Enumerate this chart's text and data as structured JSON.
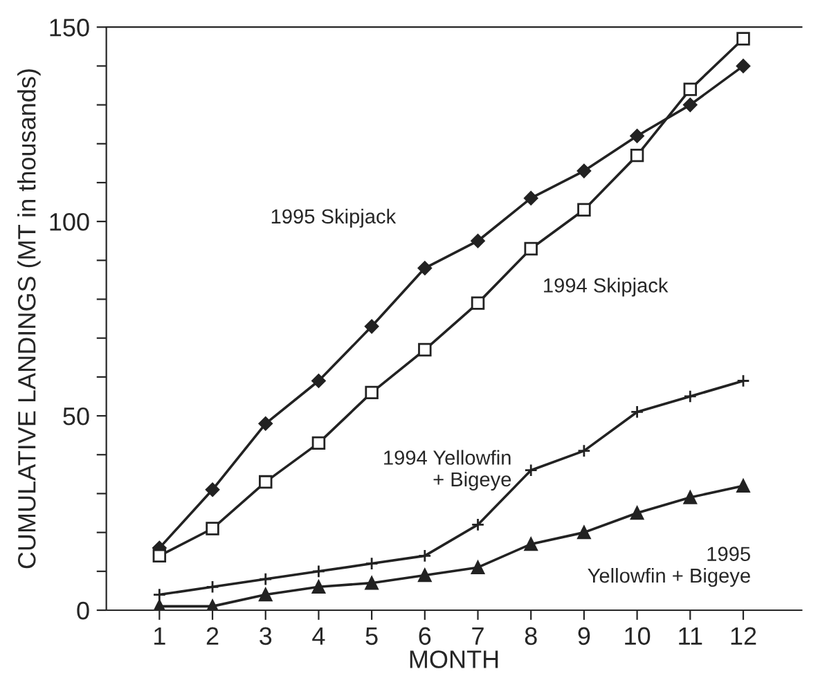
{
  "chart_data": {
    "type": "line",
    "xlabel": "MONTH",
    "ylabel": "CUMULATIVE LANDINGS (MT in thousands)",
    "x": [
      1,
      2,
      3,
      4,
      5,
      6,
      7,
      8,
      9,
      10,
      11,
      12
    ],
    "xlim": [
      0,
      13.1
    ],
    "xticks": [
      1,
      2,
      3,
      4,
      5,
      6,
      7,
      8,
      9,
      10,
      11,
      12
    ],
    "ylim": [
      0,
      150
    ],
    "yticks": [
      0,
      {
        "value": 10,
        "label": null
      },
      {
        "value": 20,
        "label": null
      },
      {
        "value": 30,
        "label": null
      },
      {
        "value": 40,
        "label": null
      },
      50,
      {
        "value": 60,
        "label": null
      },
      {
        "value": 70,
        "label": null
      },
      {
        "value": 80,
        "label": null
      },
      {
        "value": 90,
        "label": null
      },
      100,
      {
        "value": 110,
        "label": null
      },
      {
        "value": 120,
        "label": null
      },
      {
        "value": 130,
        "label": null
      },
      {
        "value": 140,
        "label": null
      },
      150
    ],
    "grid": false,
    "legend": false,
    "series": [
      {
        "name": "1995 Skipjack",
        "color": "#222222",
        "marker": "diamond",
        "values": [
          16,
          31,
          48,
          59,
          73,
          88,
          95,
          106,
          113,
          122,
          130,
          140
        ]
      },
      {
        "name": "1994 Skipjack",
        "color": "#222222",
        "marker": "square",
        "values": [
          14,
          21,
          33,
          43,
          56,
          67,
          79,
          93,
          103,
          117,
          134,
          147
        ]
      },
      {
        "name": "1994 Yellowfin\n+ Bigeye",
        "color": "#222222",
        "marker": "cross",
        "values": [
          4,
          6,
          8,
          10,
          12,
          14,
          22,
          36,
          41,
          51,
          55,
          59
        ]
      },
      {
        "name": "1995\nYellowfin + Bigeye",
        "color": "#222222",
        "marker": "triangle",
        "values": [
          1,
          1,
          4,
          6,
          7,
          9,
          11,
          17,
          20,
          25,
          29,
          32
        ]
      }
    ]
  }
}
